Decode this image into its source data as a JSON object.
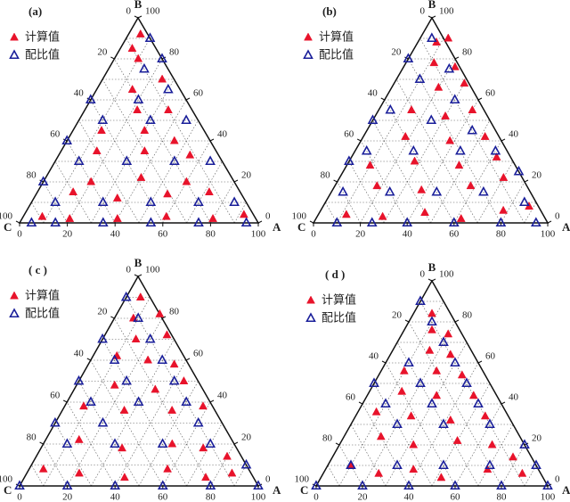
{
  "chart_data": [
    {
      "type": "ternary",
      "title": "(a)",
      "axis_labels": [
        "A",
        "B",
        "C"
      ],
      "aticks": [
        0,
        20,
        40,
        60,
        80,
        100
      ],
      "bticks": [
        0,
        20,
        40,
        60,
        80,
        100
      ],
      "cticks": [
        0,
        20,
        40,
        60,
        80,
        100
      ],
      "grid_lines": [
        10,
        20,
        30,
        40,
        50,
        60,
        70,
        80,
        90
      ],
      "series": [
        {
          "name": "计算值",
          "color": "#e8132b",
          "marker": "filled",
          "points": [
            [
              8,
              3
            ],
            [
              20,
              2
            ],
            [
              40,
              2
            ],
            [
              60,
              3
            ],
            [
              80,
              2
            ],
            [
              92,
              4
            ],
            [
              15,
              15
            ],
            [
              35,
              12
            ],
            [
              55,
              14
            ],
            [
              72,
              15
            ],
            [
              20,
              20
            ],
            [
              40,
              22
            ],
            [
              60,
              20
            ],
            [
              15,
              35
            ],
            [
              35,
              35
            ],
            [
              55,
              33
            ],
            [
              12,
              45
            ],
            [
              30,
              45
            ],
            [
              22,
              55
            ],
            [
              35,
              55
            ],
            [
              15,
              65
            ],
            [
              25,
              70
            ],
            [
              10,
              80
            ],
            [
              5,
              85
            ],
            [
              5,
              92
            ],
            [
              45,
              40
            ]
          ]
        },
        {
          "name": "配比值",
          "color": "#1a1f9a",
          "marker": "hollow",
          "points": [
            [
              5,
              0
            ],
            [
              15,
              0
            ],
            [
              35,
              0
            ],
            [
              55,
              0
            ],
            [
              75,
              0
            ],
            [
              95,
              0
            ],
            [
              10,
              10
            ],
            [
              30,
              10
            ],
            [
              50,
              10
            ],
            [
              70,
              10
            ],
            [
              85,
              10
            ],
            [
              10,
              30
            ],
            [
              30,
              30
            ],
            [
              50,
              30
            ],
            [
              65,
              30
            ],
            [
              10,
              50
            ],
            [
              30,
              50
            ],
            [
              45,
              50
            ],
            [
              20,
              60
            ],
            [
              30,
              65
            ],
            [
              15,
              75
            ],
            [
              20,
              80
            ],
            [
              10,
              90
            ],
            [
              0,
              20
            ],
            [
              0,
              40
            ],
            [
              0,
              60
            ]
          ]
        }
      ]
    },
    {
      "type": "ternary",
      "title": "(b)",
      "axis_labels": [
        "A",
        "B",
        "C"
      ],
      "aticks": [
        0,
        20,
        40,
        60,
        80,
        100
      ],
      "bticks": [
        0,
        20,
        40,
        60,
        80,
        100
      ],
      "cticks": [
        0,
        20,
        40,
        60,
        80,
        100
      ],
      "grid_lines": [
        10,
        20,
        30,
        40,
        50,
        60,
        70,
        80,
        90
      ],
      "series": [
        {
          "name": "计算值",
          "color": "#e8132b",
          "marker": "filled",
          "points": [
            [
              12,
              4
            ],
            [
              28,
              3
            ],
            [
              45,
              5
            ],
            [
              62,
              2
            ],
            [
              78,
              6
            ],
            [
              88,
              8
            ],
            [
              18,
              18
            ],
            [
              38,
              16
            ],
            [
              58,
              18
            ],
            [
              70,
              22
            ],
            [
              10,
              28
            ],
            [
              28,
              30
            ],
            [
              48,
              28
            ],
            [
              62,
              32
            ],
            [
              18,
              42
            ],
            [
              38,
              40
            ],
            [
              52,
              42
            ],
            [
              14,
              55
            ],
            [
              30,
              52
            ],
            [
              40,
              55
            ],
            [
              20,
              66
            ],
            [
              30,
              68
            ],
            [
              12,
              78
            ],
            [
              22,
              76
            ],
            [
              8,
              88
            ],
            [
              12,
              90
            ]
          ]
        },
        {
          "name": "配比值",
          "color": "#1a1f9a",
          "marker": "hollow",
          "points": [
            [
              10,
              0
            ],
            [
              25,
              0
            ],
            [
              40,
              0
            ],
            [
              60,
              0
            ],
            [
              80,
              0
            ],
            [
              95,
              0
            ],
            [
              5,
              15
            ],
            [
              25,
              15
            ],
            [
              45,
              15
            ],
            [
              65,
              15
            ],
            [
              85,
              10
            ],
            [
              5,
              35
            ],
            [
              25,
              35
            ],
            [
              45,
              35
            ],
            [
              60,
              35
            ],
            [
              5,
              55
            ],
            [
              25,
              50
            ],
            [
              45,
              45
            ],
            [
              10,
              70
            ],
            [
              30,
              60
            ],
            [
              0,
              80
            ],
            [
              20,
              75
            ],
            [
              5,
              90
            ],
            [
              0,
              30
            ],
            [
              0,
              50
            ],
            [
              75,
              25
            ]
          ]
        }
      ]
    },
    {
      "type": "ternary",
      "title": "( c )",
      "axis_labels": [
        "A",
        "B",
        "C"
      ],
      "aticks": [
        0,
        20,
        40,
        60,
        80,
        100
      ],
      "bticks": [
        0,
        20,
        40,
        60,
        80,
        100
      ],
      "cticks": [
        0,
        20,
        40,
        60,
        80,
        100
      ],
      "grid_lines": [
        10,
        20,
        30,
        40,
        50,
        60,
        70,
        80,
        90
      ],
      "series": [
        {
          "name": "计算值",
          "color": "#e8132b",
          "marker": "filled",
          "points": [
            [
              6,
              8
            ],
            [
              22,
              6
            ],
            [
              42,
              4
            ],
            [
              58,
              8
            ],
            [
              76,
              4
            ],
            [
              86,
              6
            ],
            [
              14,
              22
            ],
            [
              34,
              18
            ],
            [
              54,
              20
            ],
            [
              68,
              18
            ],
            [
              8,
              38
            ],
            [
              26,
              36
            ],
            [
              46,
              36
            ],
            [
              58,
              38
            ],
            [
              16,
              48
            ],
            [
              34,
              46
            ],
            [
              44,
              50
            ],
            [
              10,
              62
            ],
            [
              24,
              60
            ],
            [
              36,
              58
            ],
            [
              14,
              70
            ],
            [
              26,
              72
            ],
            [
              8,
              80
            ],
            [
              18,
              82
            ],
            [
              6,
              90
            ],
            [
              80,
              14
            ]
          ]
        },
        {
          "name": "配比值",
          "color": "#1a1f9a",
          "marker": "hollow",
          "points": [
            [
              0,
              0
            ],
            [
              20,
              0
            ],
            [
              40,
              0
            ],
            [
              60,
              0
            ],
            [
              80,
              0
            ],
            [
              100,
              0
            ],
            [
              10,
              20
            ],
            [
              30,
              20
            ],
            [
              50,
              20
            ],
            [
              70,
              20
            ],
            [
              90,
              10
            ],
            [
              10,
              40
            ],
            [
              30,
              40
            ],
            [
              50,
              40
            ],
            [
              20,
              30
            ],
            [
              0,
              50
            ],
            [
              20,
              50
            ],
            [
              40,
              50
            ],
            [
              10,
              60
            ],
            [
              30,
              60
            ],
            [
              0,
              70
            ],
            [
              20,
              70
            ],
            [
              10,
              80
            ],
            [
              0,
              90
            ],
            [
              60,
              30
            ],
            [
              0,
              30
            ]
          ]
        }
      ]
    },
    {
      "type": "ternary",
      "title": "( d )",
      "axis_labels": [
        "A",
        "B",
        "C"
      ],
      "aticks": [
        0,
        20,
        40,
        60,
        80,
        100
      ],
      "bticks": [
        0,
        20,
        40,
        60,
        80,
        100
      ],
      "cticks": [
        0,
        20,
        40,
        60,
        80,
        100
      ],
      "grid_lines": [
        10,
        20,
        30,
        40,
        50,
        60,
        70,
        80,
        90
      ],
      "series": [
        {
          "name": "计算值",
          "color": "#e8132b",
          "marker": "filled",
          "points": [
            [
              10,
              10
            ],
            [
              24,
              6
            ],
            [
              38,
              8
            ],
            [
              52,
              4
            ],
            [
              70,
              8
            ],
            [
              86,
              6
            ],
            [
              16,
              24
            ],
            [
              32,
              20
            ],
            [
              50,
              22
            ],
            [
              66,
              20
            ],
            [
              8,
              36
            ],
            [
              24,
              34
            ],
            [
              42,
              32
            ],
            [
              56,
              34
            ],
            [
              14,
              46
            ],
            [
              30,
              44
            ],
            [
              46,
              44
            ],
            [
              10,
              56
            ],
            [
              24,
              56
            ],
            [
              36,
              54
            ],
            [
              16,
              66
            ],
            [
              26,
              64
            ],
            [
              12,
              76
            ],
            [
              20,
              74
            ],
            [
              8,
              84
            ],
            [
              78,
              14
            ]
          ]
        },
        {
          "name": "配比值",
          "color": "#1a1f9a",
          "marker": "hollow",
          "points": [
            [
              0,
              0
            ],
            [
              20,
              0
            ],
            [
              40,
              0
            ],
            [
              60,
              0
            ],
            [
              80,
              0
            ],
            [
              100,
              0
            ],
            [
              10,
              10
            ],
            [
              30,
              10
            ],
            [
              50,
              10
            ],
            [
              70,
              10
            ],
            [
              90,
              10
            ],
            [
              20,
              30
            ],
            [
              40,
              30
            ],
            [
              60,
              30
            ],
            [
              10,
              40
            ],
            [
              30,
              40
            ],
            [
              50,
              40
            ],
            [
              20,
              50
            ],
            [
              40,
              50
            ],
            [
              10,
              60
            ],
            [
              30,
              60
            ],
            [
              20,
              70
            ],
            [
              10,
              80
            ],
            [
              0,
              90
            ],
            [
              0,
              50
            ],
            [
              80,
              20
            ]
          ]
        }
      ]
    }
  ]
}
